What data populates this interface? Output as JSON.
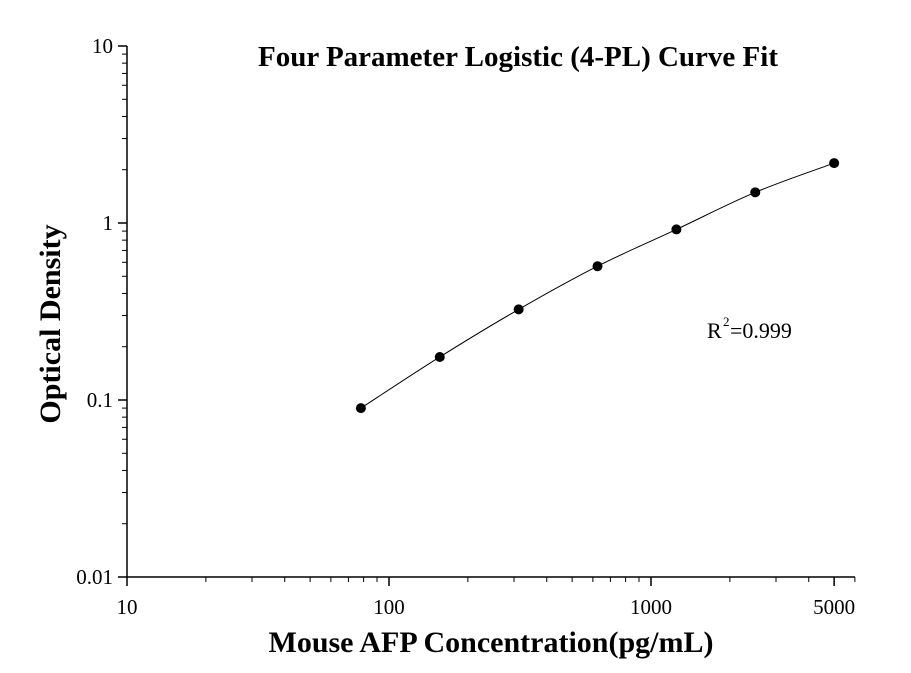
{
  "chart_data": {
    "type": "scatter",
    "title": "Four Parameter Logistic (4-PL) Curve Fit",
    "xlabel": "Mouse AFP Concentration(pg/mL)",
    "ylabel": "Optical Density",
    "x_scale": "log",
    "y_scale": "log",
    "xlim": [
      10,
      6000
    ],
    "ylim": [
      0.01,
      10
    ],
    "x_ticks": [
      {
        "value": 10,
        "label": "10"
      },
      {
        "value": 100,
        "label": "100"
      },
      {
        "value": 1000,
        "label": "1000"
      },
      {
        "value": 5000,
        "label": "5000"
      }
    ],
    "y_ticks": [
      {
        "value": 0.01,
        "label": "0.01"
      },
      {
        "value": 0.1,
        "label": "0.1"
      },
      {
        "value": 1,
        "label": "1"
      },
      {
        "value": 10,
        "label": "10"
      }
    ],
    "grid": false,
    "series": [
      {
        "marker_color": "#000000",
        "points": [
          {
            "x": 78.125,
            "y": 0.09
          },
          {
            "x": 156.25,
            "y": 0.175
          },
          {
            "x": 312.5,
            "y": 0.325
          },
          {
            "x": 625,
            "y": 0.57
          },
          {
            "x": 1250,
            "y": 0.92
          },
          {
            "x": 2500,
            "y": 1.49
          },
          {
            "x": 5000,
            "y": 2.18
          }
        ]
      }
    ],
    "fit_curve": {
      "model": "4-PL",
      "color": "#000000"
    },
    "annotation": {
      "base": "R",
      "sup": "2",
      "text": "=0.999"
    }
  }
}
